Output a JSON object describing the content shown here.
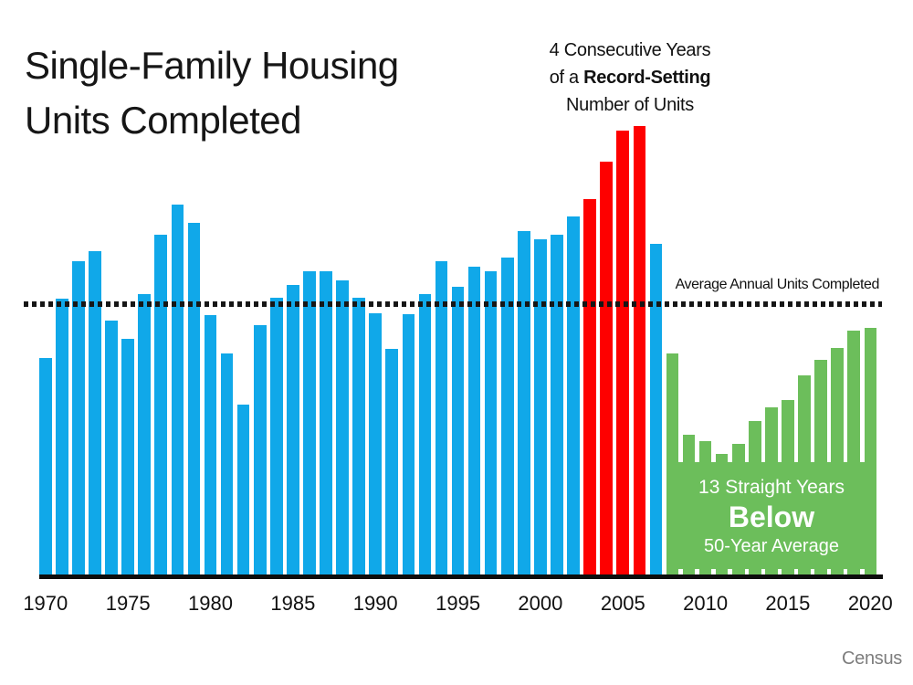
{
  "title": {
    "line1": "Single-Family Housing",
    "line2": "Units Completed"
  },
  "annotation_record": {
    "line1": "4 Consecutive Years",
    "line2_prefix": "of a ",
    "line2_bold": "Record-Setting",
    "line3": "Number of Units"
  },
  "average_line": {
    "label": "Average Annual Units Completed"
  },
  "overlay_below_average": {
    "line1": "13 Straight Years",
    "line2": "Below",
    "line3": "50-Year Average"
  },
  "source": {
    "label": "Census"
  },
  "colors": {
    "bar_blue": "#10a8e9",
    "bar_red": "#fe0000",
    "bar_green": "#6cbe5b",
    "line_black": "#161616",
    "overlay_text": "#ffffff",
    "source_gray": "#7d7d7d"
  },
  "chart_data": {
    "type": "bar",
    "title": "Single-Family Housing Units Completed",
    "xlabel": "",
    "ylabel": "",
    "y_axis_shown": false,
    "value_units": "relative bar height in pixels (chart shows no numeric y-axis)",
    "x": [
      1970,
      1971,
      1972,
      1973,
      1974,
      1975,
      1976,
      1977,
      1978,
      1979,
      1980,
      1981,
      1982,
      1983,
      1984,
      1985,
      1986,
      1987,
      1988,
      1989,
      1990,
      1991,
      1992,
      1993,
      1994,
      1995,
      1996,
      1997,
      1998,
      1999,
      2000,
      2001,
      2002,
      2003,
      2004,
      2005,
      2006,
      2007,
      2008,
      2009,
      2010,
      2011,
      2012,
      2013,
      2014,
      2015,
      2016,
      2017,
      2018,
      2019,
      2020
    ],
    "values": [
      237,
      302,
      343,
      354,
      278,
      258,
      307,
      372,
      405,
      385,
      284,
      242,
      186,
      273,
      303,
      317,
      332,
      332,
      322,
      303,
      286,
      247,
      285,
      307,
      343,
      315,
      337,
      332,
      347,
      376,
      367,
      372,
      392,
      411,
      452,
      486,
      491,
      362,
      242,
      153,
      146,
      132,
      143,
      168,
      183,
      191,
      218,
      235,
      248,
      267,
      270
    ],
    "red_years": [
      2003,
      2004,
      2005,
      2006
    ],
    "green_years": [
      2008,
      2009,
      2010,
      2011,
      2012,
      2013,
      2014,
      2015,
      2016,
      2017,
      2018,
      2019,
      2020
    ],
    "x_tick_labels": [
      "1970",
      "1975",
      "1980",
      "1985",
      "1990",
      "1995",
      "2000",
      "2005",
      "2010",
      "2015",
      "2020"
    ],
    "average_line_height_px": 296,
    "annotations": [
      "4 Consecutive Years of a Record-Setting Number of Units",
      "Average Annual Units Completed",
      "13 Straight Years Below 50-Year Average"
    ],
    "legend_position": "none",
    "grid": false
  }
}
